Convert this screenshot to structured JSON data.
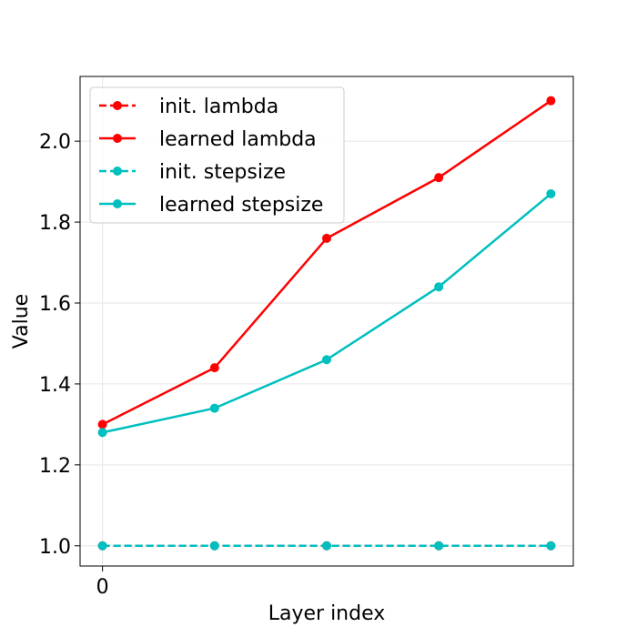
{
  "chart_data": {
    "type": "line",
    "xlabel": "Layer index",
    "ylabel": "Value",
    "x": [
      0,
      1,
      2,
      3,
      4
    ],
    "x_tick_labels": [
      "0"
    ],
    "xlim": [
      -0.2,
      4.2
    ],
    "ylim": [
      0.95,
      2.16
    ],
    "y_ticks": [
      1.0,
      1.2,
      1.4,
      1.6,
      1.8,
      2.0
    ],
    "y_tick_labels": [
      "1.0",
      "1.2",
      "1.4",
      "1.6",
      "1.8",
      "2.0"
    ],
    "grid": true,
    "legend_position": "top-left",
    "series": [
      {
        "name": "init. lambda",
        "style": "dashed",
        "color": "#ff0000",
        "values": [
          1.0,
          1.0,
          1.0,
          1.0,
          1.0
        ]
      },
      {
        "name": "learned lambda",
        "style": "solid",
        "color": "#ff0000",
        "values": [
          1.3,
          1.44,
          1.76,
          1.91,
          2.1
        ]
      },
      {
        "name": "init. stepsize",
        "style": "dashed",
        "color": "#00bfbf",
        "values": [
          1.0,
          1.0,
          1.0,
          1.0,
          1.0
        ]
      },
      {
        "name": "learned stepsize",
        "style": "solid",
        "color": "#00bfbf",
        "values": [
          1.28,
          1.34,
          1.46,
          1.64,
          1.87
        ]
      }
    ]
  }
}
